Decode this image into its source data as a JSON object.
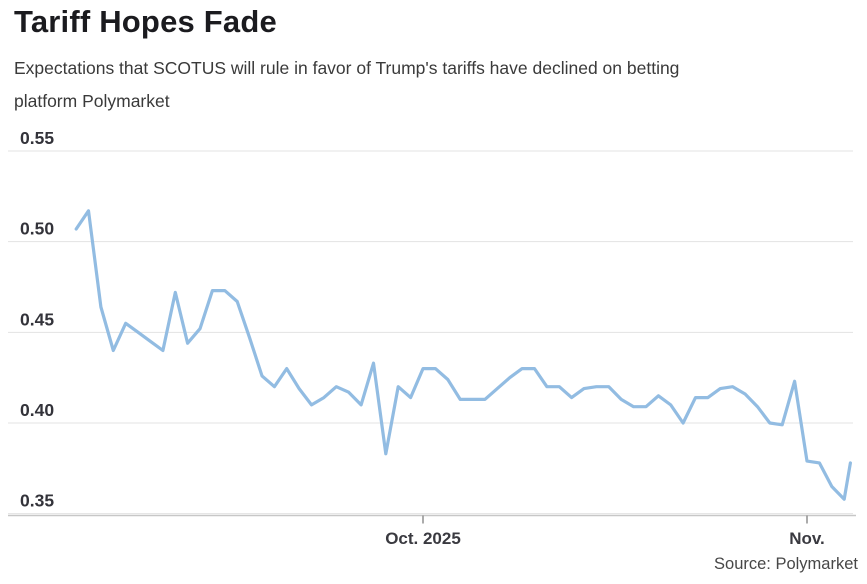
{
  "header": {
    "title": "Tariff Hopes Fade",
    "subtitle": "Expectations that SCOTUS will rule in favor of Trump's tariffs have declined on betting platform Polymarket"
  },
  "footer": {
    "source": "Source: Polymarket"
  },
  "chart_data": {
    "type": "line",
    "title": "Tariff Hopes Fade",
    "subtitle": "Expectations that SCOTUS will rule in favor of Trump's tariffs have declined on betting platform Polymarket",
    "source": "Source: Polymarket",
    "xlabel": "",
    "ylabel": "",
    "ylim": [
      0.35,
      0.55
    ],
    "grid": "horizontal",
    "legend": "none",
    "line_color": "#92bce2",
    "yticks": [
      {
        "label": "0.55",
        "value": 0.55
      },
      {
        "label": "0.50",
        "value": 0.5
      },
      {
        "label": "0.45",
        "value": 0.45
      },
      {
        "label": "0.40",
        "value": 0.4
      },
      {
        "label": "0.35",
        "value": 0.35
      }
    ],
    "xticks": [
      {
        "label": "Oct. 2025",
        "day": 28
      },
      {
        "label": "Nov.",
        "day": 59
      }
    ],
    "series_name": "Probability SCOTUS rules in favor of Trump's tariffs",
    "dates": [
      "Sep 3",
      "Sep 4",
      "Sep 5",
      "Sep 6",
      "Sep 7",
      "Sep 8",
      "Sep 9",
      "Sep 10",
      "Sep 11",
      "Sep 12",
      "Sep 13",
      "Sep 14",
      "Sep 15",
      "Sep 16",
      "Sep 17",
      "Sep 18",
      "Sep 19",
      "Sep 20",
      "Sep 21",
      "Sep 22",
      "Sep 23",
      "Sep 24",
      "Sep 25",
      "Sep 26",
      "Sep 27",
      "Sep 28",
      "Sep 29",
      "Sep 30",
      "Oct 1",
      "Oct 2",
      "Oct 3",
      "Oct 4",
      "Oct 5",
      "Oct 6",
      "Oct 7",
      "Oct 8",
      "Oct 9",
      "Oct 10",
      "Oct 11",
      "Oct 12",
      "Oct 13",
      "Oct 14",
      "Oct 15",
      "Oct 16",
      "Oct 17",
      "Oct 18",
      "Oct 19",
      "Oct 20",
      "Oct 21",
      "Oct 22",
      "Oct 23",
      "Oct 24",
      "Oct 25",
      "Oct 26",
      "Oct 27",
      "Oct 28",
      "Oct 29",
      "Oct 30",
      "Oct 31",
      "Nov 1",
      "Nov 2",
      "Nov 3",
      "Nov 4",
      "Nov 4 (close)"
    ],
    "days": [
      0,
      1,
      2,
      3,
      4,
      5,
      6,
      7,
      8,
      9,
      10,
      11,
      12,
      13,
      14,
      15,
      16,
      17,
      18,
      19,
      20,
      21,
      22,
      23,
      24,
      25,
      26,
      27,
      28,
      29,
      30,
      31,
      32,
      33,
      34,
      35,
      36,
      37,
      38,
      39,
      40,
      41,
      42,
      43,
      44,
      45,
      46,
      47,
      48,
      49,
      50,
      51,
      52,
      53,
      54,
      55,
      56,
      57,
      58,
      59,
      60,
      61,
      62,
      62.5
    ],
    "values": [
      0.507,
      0.517,
      0.464,
      0.44,
      0.455,
      0.45,
      0.445,
      0.44,
      0.472,
      0.444,
      0.452,
      0.473,
      0.473,
      0.467,
      0.447,
      0.426,
      0.42,
      0.43,
      0.419,
      0.41,
      0.414,
      0.42,
      0.417,
      0.41,
      0.433,
      0.383,
      0.42,
      0.414,
      0.43,
      0.43,
      0.424,
      0.413,
      0.413,
      0.413,
      0.419,
      0.425,
      0.43,
      0.43,
      0.42,
      0.42,
      0.414,
      0.419,
      0.42,
      0.42,
      0.413,
      0.409,
      0.409,
      0.415,
      0.41,
      0.4,
      0.414,
      0.414,
      0.419,
      0.42,
      0.416,
      0.409,
      0.4,
      0.399,
      0.423,
      0.379,
      0.378,
      0.365,
      0.358,
      0.378
    ]
  }
}
